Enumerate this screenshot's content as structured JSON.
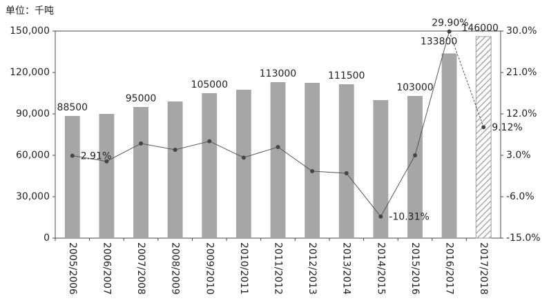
{
  "chart_data": {
    "type": "bar_line",
    "title": "单位：千吨",
    "categories": [
      "2005/2006",
      "2006/2007",
      "2007/2008",
      "2008/2009",
      "2009/2010",
      "2010/2011",
      "2011/2012",
      "2012/2013",
      "2013/2014",
      "2014/2015",
      "2015/2016",
      "2016/2017",
      "2017/2018"
    ],
    "series": [
      {
        "type": "bar",
        "color": "#a6a6a6",
        "values": [
          88500,
          90000,
          95000,
          99000,
          105000,
          107500,
          113000,
          112500,
          111500,
          100000,
          103000,
          133800,
          146000
        ],
        "value_labels": [
          "88500",
          null,
          "95000",
          null,
          "105000",
          null,
          "113000",
          null,
          "111500",
          null,
          "103000",
          "133800",
          "146000"
        ]
      },
      {
        "type": "line",
        "axis": "y2",
        "color": "#555555",
        "values": [
          2.91,
          1.69,
          5.56,
          4.2,
          6.06,
          2.5,
          4.8,
          -0.45,
          -0.9,
          -10.31,
          3.0,
          29.9,
          9.12
        ],
        "value_labels": [
          "2.91%",
          null,
          null,
          null,
          null,
          null,
          null,
          null,
          null,
          "-10.31%",
          null,
          "29.90%",
          "9.12%"
        ]
      }
    ],
    "projected_last": true,
    "ylim": [
      0,
      150000
    ],
    "yticks": [
      0,
      {
        "value": 30000,
        "label": "30,000"
      },
      {
        "value": 60000,
        "label": "60,000"
      },
      {
        "value": 90000,
        "label": "90,000"
      },
      {
        "value": 120000,
        "label": "120,000"
      },
      {
        "value": 150000,
        "label": "150,000"
      }
    ],
    "y2lim": [
      -15,
      30
    ],
    "y2ticks": [
      {
        "value": -15,
        "label": "-15.0%"
      },
      {
        "value": -6,
        "label": "-6.0%"
      },
      {
        "value": 3,
        "label": "3.0%"
      },
      {
        "value": 12,
        "label": "12.0%"
      },
      {
        "value": 21,
        "label": "21.0%"
      },
      {
        "value": 30,
        "label": "30.0%"
      }
    ],
    "grid": false
  }
}
